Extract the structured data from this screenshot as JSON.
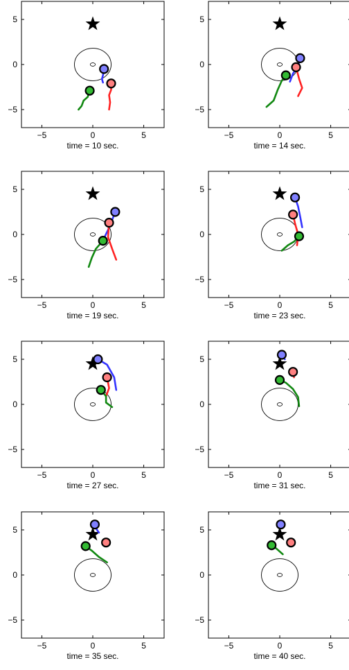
{
  "figure": {
    "colors": {
      "blue": "#3333ff",
      "red": "#ff2222",
      "green": "#118811",
      "blue_fill": "#8080ff",
      "red_fill": "#ff8080",
      "green_fill": "#33bb33",
      "star": "#000000"
    }
  },
  "chart_data": [
    {
      "type": "scatter",
      "xlabel": "time = 10 sec.",
      "xlim": [
        -7,
        7
      ],
      "ylim": [
        -7,
        7
      ],
      "xticks": [
        -5,
        0,
        5
      ],
      "yticks": [
        -5,
        0,
        5
      ],
      "xtick_labels": [
        "−5",
        "0",
        "5"
      ],
      "ytick_labels": [
        "−5",
        "0",
        "5"
      ],
      "star": [
        0,
        4.5
      ],
      "circle": {
        "center": [
          0,
          0
        ],
        "radius": 1.8
      },
      "inner_circle": {
        "center": [
          0,
          0
        ],
        "radius": 0.25
      },
      "agents": [
        {
          "color": "blue",
          "position": [
            1.1,
            -0.5
          ],
          "path": [
            [
              1.0,
              -2.0
            ],
            [
              0.9,
              -1.6
            ],
            [
              1.0,
              -1.2
            ],
            [
              1.1,
              -0.5
            ]
          ]
        },
        {
          "color": "red",
          "position": [
            1.8,
            -2.1
          ],
          "path": [
            [
              1.6,
              -5.0
            ],
            [
              1.7,
              -4.2
            ],
            [
              1.6,
              -3.4
            ],
            [
              1.8,
              -2.8
            ],
            [
              1.8,
              -2.1
            ]
          ]
        },
        {
          "color": "green",
          "position": [
            -0.3,
            -2.9
          ],
          "path": [
            [
              -1.4,
              -5.0
            ],
            [
              -1.1,
              -4.6
            ],
            [
              -0.9,
              -4.0
            ],
            [
              -0.5,
              -3.6
            ],
            [
              -0.3,
              -2.9
            ]
          ]
        }
      ]
    },
    {
      "type": "scatter",
      "xlabel": "time = 14 sec.",
      "xlim": [
        -7,
        7
      ],
      "ylim": [
        -7,
        7
      ],
      "xticks": [
        -5,
        0,
        5
      ],
      "yticks": [
        -5,
        0,
        5
      ],
      "xtick_labels": [
        "−5",
        "0",
        "5"
      ],
      "ytick_labels": [
        "−5",
        "0",
        "5"
      ],
      "star": [
        0,
        4.5
      ],
      "circle": {
        "center": [
          0,
          0
        ],
        "radius": 1.8
      },
      "inner_circle": {
        "center": [
          0,
          0
        ],
        "radius": 0.25
      },
      "agents": [
        {
          "color": "blue",
          "position": [
            2.0,
            0.7
          ],
          "path": [
            [
              1.0,
              -1.9
            ],
            [
              1.3,
              -1.0
            ],
            [
              1.8,
              -0.2
            ],
            [
              2.0,
              0.7
            ]
          ]
        },
        {
          "color": "red",
          "position": [
            1.6,
            -0.3
          ],
          "path": [
            [
              1.8,
              -3.5
            ],
            [
              2.2,
              -2.6
            ],
            [
              1.9,
              -1.6
            ],
            [
              1.6,
              -0.3
            ]
          ]
        },
        {
          "color": "green",
          "position": [
            0.6,
            -1.2
          ],
          "path": [
            [
              -1.3,
              -4.7
            ],
            [
              -0.6,
              -4.0
            ],
            [
              -0.2,
              -2.8
            ],
            [
              0.2,
              -1.8
            ],
            [
              0.6,
              -1.2
            ]
          ]
        }
      ]
    },
    {
      "type": "scatter",
      "xlabel": "time = 19 sec.",
      "xlim": [
        -7,
        7
      ],
      "ylim": [
        -7,
        7
      ],
      "xticks": [
        -5,
        0,
        5
      ],
      "yticks": [
        -5,
        0,
        5
      ],
      "xtick_labels": [
        "−5",
        "0",
        "5"
      ],
      "ytick_labels": [
        "−5",
        "0",
        "5"
      ],
      "star": [
        0,
        4.5
      ],
      "circle": {
        "center": [
          0,
          0
        ],
        "radius": 1.8
      },
      "inner_circle": {
        "center": [
          0,
          0
        ],
        "radius": 0.25
      },
      "agents": [
        {
          "color": "blue",
          "position": [
            2.2,
            2.5
          ],
          "path": [
            [
              1.2,
              -0.2
            ],
            [
              1.5,
              0.5
            ],
            [
              1.9,
              1.6
            ],
            [
              2.2,
              2.5
            ]
          ]
        },
        {
          "color": "red",
          "position": [
            1.6,
            1.3
          ],
          "path": [
            [
              2.3,
              -2.8
            ],
            [
              1.9,
              -1.6
            ],
            [
              1.5,
              -0.3
            ],
            [
              1.6,
              1.3
            ]
          ]
        },
        {
          "color": "green",
          "position": [
            1.0,
            -0.7
          ],
          "path": [
            [
              -0.4,
              -3.6
            ],
            [
              -0.1,
              -2.6
            ],
            [
              0.3,
              -1.6
            ],
            [
              1.0,
              -0.7
            ]
          ]
        }
      ]
    },
    {
      "type": "scatter",
      "xlabel": "time = 23 sec.",
      "xlim": [
        -7,
        7
      ],
      "ylim": [
        -7,
        7
      ],
      "xticks": [
        -5,
        0,
        5
      ],
      "yticks": [
        -5,
        0,
        5
      ],
      "xtick_labels": [
        "−5",
        "0",
        "5"
      ],
      "ytick_labels": [
        "−5",
        "0",
        "5"
      ],
      "star": [
        0,
        4.5
      ],
      "circle": {
        "center": [
          0,
          0
        ],
        "radius": 1.8
      },
      "inner_circle": {
        "center": [
          0,
          0
        ],
        "radius": 0.25
      },
      "agents": [
        {
          "color": "blue",
          "position": [
            1.5,
            4.1
          ],
          "path": [
            [
              2.2,
              0.8
            ],
            [
              2.0,
              2.0
            ],
            [
              1.8,
              3.1
            ],
            [
              1.5,
              4.1
            ]
          ]
        },
        {
          "color": "red",
          "position": [
            1.3,
            2.2
          ],
          "path": [
            [
              1.7,
              -1.2
            ],
            [
              1.8,
              0.0
            ],
            [
              1.5,
              1.2
            ],
            [
              1.3,
              2.2
            ]
          ]
        },
        {
          "color": "green",
          "position": [
            1.9,
            -0.2
          ],
          "path": [
            [
              0.2,
              -1.8
            ],
            [
              0.8,
              -1.2
            ],
            [
              1.4,
              -0.8
            ],
            [
              1.9,
              -0.2
            ]
          ]
        }
      ]
    },
    {
      "type": "scatter",
      "xlabel": "time = 27 sec.",
      "xlim": [
        -7,
        7
      ],
      "ylim": [
        -7,
        7
      ],
      "xticks": [
        -5,
        0,
        5
      ],
      "yticks": [
        -5,
        0,
        5
      ],
      "xtick_labels": [
        "−5",
        "0",
        "5"
      ],
      "ytick_labels": [
        "−5",
        "0",
        "5"
      ],
      "star": [
        0,
        4.5
      ],
      "circle": {
        "center": [
          0,
          0
        ],
        "radius": 1.8
      },
      "inner_circle": {
        "center": [
          0,
          0
        ],
        "radius": 0.25
      },
      "agents": [
        {
          "color": "blue",
          "position": [
            0.5,
            5.0
          ],
          "path": [
            [
              2.3,
              1.6
            ],
            [
              2.1,
              3.0
            ],
            [
              1.4,
              4.4
            ],
            [
              0.5,
              5.0
            ]
          ]
        },
        {
          "color": "red",
          "position": [
            1.4,
            3.0
          ],
          "path": [
            [
              1.3,
              0.9
            ],
            [
              1.6,
              1.8
            ],
            [
              1.4,
              3.0
            ]
          ]
        },
        {
          "color": "green",
          "position": [
            0.8,
            1.6
          ],
          "path": [
            [
              1.9,
              -0.3
            ],
            [
              1.3,
              0.2
            ],
            [
              1.3,
              0.9
            ],
            [
              0.8,
              1.6
            ]
          ]
        }
      ]
    },
    {
      "type": "scatter",
      "xlabel": "time = 31 sec.",
      "xlim": [
        -7,
        7
      ],
      "ylim": [
        -7,
        7
      ],
      "xticks": [
        -5,
        0,
        5
      ],
      "yticks": [
        -5,
        0,
        5
      ],
      "xtick_labels": [
        "−5",
        "0",
        "5"
      ],
      "ytick_labels": [
        "−5",
        "0",
        "5"
      ],
      "star": [
        0,
        4.5
      ],
      "circle": {
        "center": [
          0,
          0
        ],
        "radius": 1.8
      },
      "inner_circle": {
        "center": [
          0,
          0
        ],
        "radius": 0.25
      },
      "agents": [
        {
          "color": "blue",
          "position": [
            0.2,
            5.5
          ],
          "path": [
            [
              0.5,
              5.0
            ],
            [
              0.2,
              5.5
            ]
          ]
        },
        {
          "color": "red",
          "position": [
            1.3,
            3.6
          ],
          "path": [
            [
              1.4,
              3.0
            ],
            [
              1.3,
              3.6
            ]
          ]
        },
        {
          "color": "green",
          "position": [
            0.0,
            2.7
          ],
          "path": [
            [
              1.9,
              -0.2
            ],
            [
              1.8,
              0.8
            ],
            [
              1.3,
              1.7
            ],
            [
              0.6,
              2.4
            ],
            [
              0.0,
              2.7
            ]
          ]
        }
      ]
    },
    {
      "type": "scatter",
      "xlabel": "time = 35 sec.",
      "xlim": [
        -7,
        7
      ],
      "ylim": [
        -7,
        7
      ],
      "xticks": [
        -5,
        0,
        5
      ],
      "yticks": [
        -5,
        0,
        5
      ],
      "xtick_labels": [
        "−5",
        "0",
        "5"
      ],
      "ytick_labels": [
        "−5",
        "0",
        "5"
      ],
      "star": [
        0,
        4.5
      ],
      "circle": {
        "center": [
          0,
          0
        ],
        "radius": 1.8
      },
      "inner_circle": {
        "center": [
          0,
          0
        ],
        "radius": 0.25
      },
      "agents": [
        {
          "color": "blue",
          "position": [
            0.2,
            5.6
          ],
          "path": [
            [
              0.6,
              4.7
            ],
            [
              0.3,
              5.2
            ],
            [
              0.2,
              5.6
            ]
          ]
        },
        {
          "color": "red",
          "position": [
            1.3,
            3.6
          ],
          "path": [
            [
              1.3,
              3.2
            ],
            [
              1.3,
              3.6
            ]
          ]
        },
        {
          "color": "green",
          "position": [
            -0.7,
            3.2
          ],
          "path": [
            [
              1.4,
              1.4
            ],
            [
              0.6,
              2.0
            ],
            [
              -0.1,
              2.7
            ],
            [
              -0.7,
              3.2
            ]
          ]
        }
      ]
    },
    {
      "type": "scatter",
      "xlabel": "time = 40 sec.",
      "xlim": [
        -7,
        7
      ],
      "ylim": [
        -7,
        7
      ],
      "xticks": [
        -5,
        0,
        5
      ],
      "yticks": [
        -5,
        0,
        5
      ],
      "xtick_labels": [
        "−5",
        "0",
        "5"
      ],
      "ytick_labels": [
        "−5",
        "0",
        "5"
      ],
      "star": [
        0,
        4.5
      ],
      "circle": {
        "center": [
          0,
          0
        ],
        "radius": 1.8
      },
      "inner_circle": {
        "center": [
          0,
          0
        ],
        "radius": 0.25
      },
      "agents": [
        {
          "color": "blue",
          "position": [
            0.1,
            5.6
          ],
          "path": [
            [
              0.1,
              5.6
            ]
          ]
        },
        {
          "color": "red",
          "position": [
            1.1,
            3.6
          ],
          "path": [
            [
              1.1,
              3.6
            ]
          ]
        },
        {
          "color": "green",
          "position": [
            -0.8,
            3.3
          ],
          "path": [
            [
              0.3,
              2.3
            ],
            [
              -0.3,
              2.9
            ],
            [
              -0.8,
              3.3
            ]
          ]
        }
      ]
    }
  ]
}
